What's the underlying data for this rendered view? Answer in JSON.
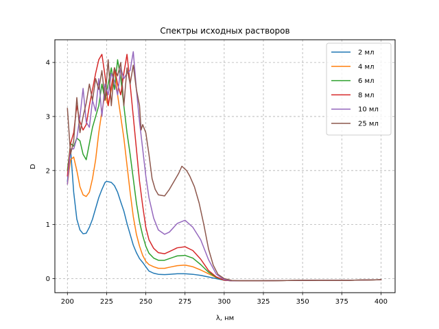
{
  "chart_data": {
    "type": "line",
    "title": "Спектры исходных растворов",
    "xlabel": "λ, нм",
    "ylabel": "D",
    "xlim": [
      192,
      409
    ],
    "ylim": [
      -0.26,
      4.42
    ],
    "xticks": [
      200,
      225,
      250,
      275,
      300,
      325,
      350,
      375,
      400
    ],
    "yticks": [
      0,
      1,
      2,
      3,
      4
    ],
    "grid": true,
    "grid_style": "dashed",
    "legend_position": "upper right",
    "series": [
      {
        "name": "2 мл",
        "color": "#1f77b4",
        "points": [
          [
            200,
            1.8
          ],
          [
            202,
            2.4
          ],
          [
            204,
            1.6
          ],
          [
            206,
            1.1
          ],
          [
            208,
            0.9
          ],
          [
            210,
            0.83
          ],
          [
            212,
            0.84
          ],
          [
            214,
            0.95
          ],
          [
            216,
            1.1
          ],
          [
            218,
            1.3
          ],
          [
            220,
            1.5
          ],
          [
            222,
            1.65
          ],
          [
            224,
            1.78
          ],
          [
            225,
            1.8
          ],
          [
            228,
            1.78
          ],
          [
            230,
            1.72
          ],
          [
            232,
            1.6
          ],
          [
            234,
            1.42
          ],
          [
            236,
            1.25
          ],
          [
            238,
            1.02
          ],
          [
            240,
            0.82
          ],
          [
            242,
            0.62
          ],
          [
            244,
            0.48
          ],
          [
            246,
            0.37
          ],
          [
            248,
            0.3
          ],
          [
            250,
            0.22
          ],
          [
            252,
            0.14
          ],
          [
            255,
            0.1
          ],
          [
            258,
            0.08
          ],
          [
            262,
            0.075
          ],
          [
            265,
            0.08
          ],
          [
            270,
            0.09
          ],
          [
            275,
            0.09
          ],
          [
            280,
            0.08
          ],
          [
            285,
            0.06
          ],
          [
            290,
            0.03
          ],
          [
            295,
            0.0
          ],
          [
            300,
            -0.03
          ],
          [
            305,
            -0.04
          ],
          [
            310,
            -0.04
          ],
          [
            320,
            -0.04
          ],
          [
            340,
            -0.035
          ],
          [
            360,
            -0.03
          ],
          [
            380,
            -0.03
          ],
          [
            400,
            -0.02
          ]
        ]
      },
      {
        "name": "4 мл",
        "color": "#ff7f0e",
        "points": [
          [
            200,
            1.75
          ],
          [
            202,
            2.2
          ],
          [
            204,
            2.25
          ],
          [
            206,
            2.0
          ],
          [
            208,
            1.7
          ],
          [
            210,
            1.55
          ],
          [
            212,
            1.52
          ],
          [
            214,
            1.6
          ],
          [
            216,
            1.85
          ],
          [
            218,
            2.2
          ],
          [
            220,
            2.7
          ],
          [
            222,
            3.1
          ],
          [
            224,
            3.4
          ],
          [
            226,
            3.2
          ],
          [
            228,
            3.5
          ],
          [
            230,
            3.9
          ],
          [
            232,
            3.4
          ],
          [
            234,
            3.0
          ],
          [
            236,
            2.6
          ],
          [
            238,
            2.1
          ],
          [
            240,
            1.6
          ],
          [
            242,
            1.15
          ],
          [
            244,
            0.82
          ],
          [
            246,
            0.6
          ],
          [
            248,
            0.43
          ],
          [
            250,
            0.32
          ],
          [
            252,
            0.26
          ],
          [
            255,
            0.22
          ],
          [
            258,
            0.19
          ],
          [
            262,
            0.19
          ],
          [
            265,
            0.21
          ],
          [
            270,
            0.24
          ],
          [
            275,
            0.25
          ],
          [
            280,
            0.22
          ],
          [
            285,
            0.16
          ],
          [
            290,
            0.09
          ],
          [
            295,
            0.02
          ],
          [
            300,
            -0.03
          ],
          [
            305,
            -0.04
          ],
          [
            310,
            -0.04
          ],
          [
            320,
            -0.04
          ],
          [
            340,
            -0.035
          ],
          [
            360,
            -0.03
          ],
          [
            380,
            -0.03
          ],
          [
            400,
            -0.02
          ]
        ]
      },
      {
        "name": "6 мл",
        "color": "#2ca02c",
        "points": [
          [
            200,
            2.0
          ],
          [
            202,
            2.5
          ],
          [
            204,
            2.45
          ],
          [
            206,
            2.6
          ],
          [
            208,
            2.55
          ],
          [
            210,
            2.3
          ],
          [
            212,
            2.2
          ],
          [
            214,
            2.5
          ],
          [
            216,
            2.8
          ],
          [
            218,
            3.0
          ],
          [
            220,
            3.2
          ],
          [
            222,
            3.6
          ],
          [
            224,
            3.3
          ],
          [
            226,
            3.6
          ],
          [
            228,
            3.9
          ],
          [
            230,
            3.5
          ],
          [
            232,
            4.05
          ],
          [
            234,
            3.7
          ],
          [
            236,
            3.2
          ],
          [
            238,
            2.7
          ],
          [
            240,
            2.3
          ],
          [
            242,
            1.85
          ],
          [
            244,
            1.4
          ],
          [
            246,
            1.05
          ],
          [
            248,
            0.8
          ],
          [
            250,
            0.6
          ],
          [
            252,
            0.47
          ],
          [
            255,
            0.38
          ],
          [
            258,
            0.34
          ],
          [
            262,
            0.34
          ],
          [
            265,
            0.37
          ],
          [
            270,
            0.42
          ],
          [
            275,
            0.43
          ],
          [
            280,
            0.38
          ],
          [
            285,
            0.26
          ],
          [
            290,
            0.12
          ],
          [
            295,
            0.02
          ],
          [
            300,
            -0.03
          ],
          [
            305,
            -0.04
          ],
          [
            310,
            -0.04
          ],
          [
            320,
            -0.04
          ],
          [
            340,
            -0.035
          ],
          [
            360,
            -0.03
          ],
          [
            380,
            -0.03
          ],
          [
            400,
            -0.02
          ]
        ]
      },
      {
        "name": "8 мл",
        "color": "#d62728",
        "points": [
          [
            200,
            1.9
          ],
          [
            202,
            2.5
          ],
          [
            204,
            2.7
          ],
          [
            206,
            3.2
          ],
          [
            208,
            2.9
          ],
          [
            210,
            2.75
          ],
          [
            212,
            2.85
          ],
          [
            214,
            3.2
          ],
          [
            216,
            3.5
          ],
          [
            218,
            3.8
          ],
          [
            220,
            4.05
          ],
          [
            222,
            4.15
          ],
          [
            224,
            3.75
          ],
          [
            226,
            3.2
          ],
          [
            228,
            3.55
          ],
          [
            230,
            3.9
          ],
          [
            232,
            3.6
          ],
          [
            234,
            3.4
          ],
          [
            236,
            3.8
          ],
          [
            238,
            4.15
          ],
          [
            240,
            3.6
          ],
          [
            242,
            3.0
          ],
          [
            244,
            2.4
          ],
          [
            246,
            1.8
          ],
          [
            248,
            1.35
          ],
          [
            250,
            0.95
          ],
          [
            252,
            0.72
          ],
          [
            255,
            0.56
          ],
          [
            258,
            0.48
          ],
          [
            262,
            0.46
          ],
          [
            265,
            0.5
          ],
          [
            270,
            0.57
          ],
          [
            275,
            0.59
          ],
          [
            280,
            0.52
          ],
          [
            285,
            0.36
          ],
          [
            290,
            0.15
          ],
          [
            295,
            0.03
          ],
          [
            300,
            -0.03
          ],
          [
            305,
            -0.04
          ],
          [
            310,
            -0.04
          ],
          [
            320,
            -0.04
          ],
          [
            340,
            -0.035
          ],
          [
            360,
            -0.03
          ],
          [
            380,
            -0.03
          ],
          [
            400,
            -0.02
          ]
        ]
      },
      {
        "name": "10 мл",
        "color": "#9467bd",
        "points": [
          [
            200,
            1.75
          ],
          [
            202,
            2.4
          ],
          [
            204,
            2.4
          ],
          [
            206,
            2.6
          ],
          [
            208,
            3.0
          ],
          [
            210,
            3.52
          ],
          [
            212,
            2.9
          ],
          [
            214,
            2.8
          ],
          [
            216,
            3.3
          ],
          [
            218,
            3.1
          ],
          [
            220,
            3.7
          ],
          [
            222,
            3.0
          ],
          [
            224,
            3.6
          ],
          [
            226,
            3.4
          ],
          [
            228,
            3.8
          ],
          [
            230,
            3.65
          ],
          [
            232,
            3.4
          ],
          [
            234,
            3.9
          ],
          [
            236,
            3.7
          ],
          [
            238,
            3.8
          ],
          [
            240,
            3.85
          ],
          [
            242,
            4.2
          ],
          [
            244,
            3.5
          ],
          [
            246,
            2.9
          ],
          [
            248,
            2.4
          ],
          [
            250,
            1.9
          ],
          [
            252,
            1.5
          ],
          [
            255,
            1.12
          ],
          [
            258,
            0.9
          ],
          [
            262,
            0.82
          ],
          [
            265,
            0.86
          ],
          [
            270,
            1.02
          ],
          [
            275,
            1.08
          ],
          [
            280,
            0.95
          ],
          [
            285,
            0.72
          ],
          [
            290,
            0.35
          ],
          [
            295,
            0.08
          ],
          [
            300,
            -0.02
          ],
          [
            305,
            -0.04
          ],
          [
            310,
            -0.04
          ],
          [
            320,
            -0.04
          ],
          [
            340,
            -0.035
          ],
          [
            360,
            -0.03
          ],
          [
            380,
            -0.03
          ],
          [
            400,
            -0.02
          ]
        ]
      },
      {
        "name": "25 мл",
        "color": "#8c564b",
        "points": [
          [
            200,
            3.15
          ],
          [
            202,
            2.3
          ],
          [
            204,
            2.55
          ],
          [
            206,
            3.35
          ],
          [
            208,
            2.7
          ],
          [
            210,
            3.0
          ],
          [
            212,
            3.25
          ],
          [
            214,
            3.6
          ],
          [
            216,
            3.3
          ],
          [
            218,
            3.7
          ],
          [
            220,
            3.5
          ],
          [
            222,
            3.85
          ],
          [
            224,
            3.3
          ],
          [
            226,
            4.05
          ],
          [
            228,
            3.2
          ],
          [
            230,
            3.9
          ],
          [
            232,
            3.75
          ],
          [
            234,
            4.0
          ],
          [
            236,
            3.2
          ],
          [
            238,
            3.9
          ],
          [
            240,
            3.6
          ],
          [
            242,
            3.95
          ],
          [
            244,
            3.5
          ],
          [
            246,
            3.2
          ],
          [
            247,
            2.75
          ],
          [
            248,
            2.85
          ],
          [
            250,
            2.7
          ],
          [
            252,
            2.3
          ],
          [
            254,
            1.85
          ],
          [
            256,
            1.65
          ],
          [
            258,
            1.55
          ],
          [
            262,
            1.53
          ],
          [
            265,
            1.65
          ],
          [
            268,
            1.8
          ],
          [
            271,
            1.95
          ],
          [
            273,
            2.08
          ],
          [
            276,
            2.0
          ],
          [
            278,
            1.9
          ],
          [
            281,
            1.7
          ],
          [
            284,
            1.4
          ],
          [
            287,
            1.0
          ],
          [
            290,
            0.55
          ],
          [
            293,
            0.25
          ],
          [
            296,
            0.08
          ],
          [
            300,
            0.0
          ],
          [
            305,
            -0.035
          ],
          [
            310,
            -0.04
          ],
          [
            320,
            -0.04
          ],
          [
            340,
            -0.035
          ],
          [
            360,
            -0.03
          ],
          [
            380,
            -0.03
          ],
          [
            400,
            -0.02
          ]
        ]
      }
    ]
  }
}
